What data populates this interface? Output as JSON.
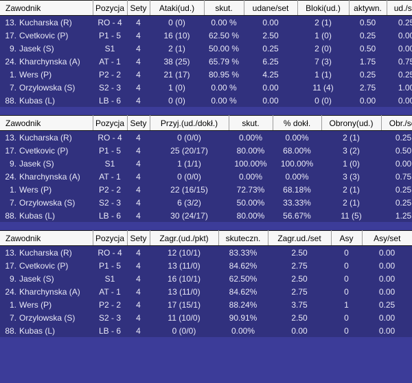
{
  "colors": {
    "row_bg": "#31317e",
    "page_bg": "#3c3c99",
    "header_bg": "#f7f7f7",
    "header_text": "#000000",
    "row_text": "#e9e9f7"
  },
  "tables": [
    {
      "name": "attack-block-stats",
      "columns": [
        "Zawodnik",
        "Pozycja",
        "Sety",
        "Ataki(ud.)",
        "skut.",
        "udane/set",
        "Bloki(ud.)",
        "aktywn.",
        "ud./set"
      ],
      "rows": [
        {
          "no": "13.",
          "name": "Kucharska (R)",
          "cells": [
            "RO - 4",
            "4",
            "0 (0)",
            "0.00 %",
            "0.00",
            "2 (1)",
            "0.50",
            "0.25"
          ]
        },
        {
          "no": "17.",
          "name": "Cvetkovic (P)",
          "cells": [
            "P1 - 5",
            "4",
            "16 (10)",
            "62.50 %",
            "2.50",
            "1 (0)",
            "0.25",
            "0.00"
          ]
        },
        {
          "no": "9.",
          "name": "Jasek (S)",
          "cells": [
            "S1",
            "4",
            "2 (1)",
            "50.00 %",
            "0.25",
            "2 (0)",
            "0.50",
            "0.00"
          ]
        },
        {
          "no": "24.",
          "name": "Kharchynska (A)",
          "cells": [
            "AT - 1",
            "4",
            "38 (25)",
            "65.79 %",
            "6.25",
            "7 (3)",
            "1.75",
            "0.75"
          ]
        },
        {
          "no": "1.",
          "name": "Wers (P)",
          "cells": [
            "P2 - 2",
            "4",
            "21 (17)",
            "80.95 %",
            "4.25",
            "1 (1)",
            "0.25",
            "0.25"
          ]
        },
        {
          "no": "7.",
          "name": "Orzylowska (S)",
          "cells": [
            "S2 - 3",
            "4",
            "1 (0)",
            "0.00 %",
            "0.00",
            "11 (4)",
            "2.75",
            "1.00"
          ]
        },
        {
          "no": "88.",
          "name": "Kubas (L)",
          "cells": [
            "LB - 6",
            "4",
            "0 (0)",
            "0.00 %",
            "0.00",
            "0 (0)",
            "0.00",
            "0.00"
          ]
        }
      ]
    },
    {
      "name": "reception-defense-stats",
      "columns": [
        "Zawodnik",
        "Pozycja",
        "Sety",
        "Przyj.(ud./dokł.)",
        "skut.",
        "% dokł.",
        "Obrony(ud.)",
        "Obr./set"
      ],
      "rows": [
        {
          "no": "13.",
          "name": "Kucharska (R)",
          "cells": [
            "RO - 4",
            "4",
            "0 (0/0)",
            "0.00%",
            "0.00%",
            "2 (1)",
            "0.25"
          ]
        },
        {
          "no": "17.",
          "name": "Cvetkovic (P)",
          "cells": [
            "P1 - 5",
            "4",
            "25 (20/17)",
            "80.00%",
            "68.00%",
            "3 (2)",
            "0.50"
          ]
        },
        {
          "no": "9.",
          "name": "Jasek (S)",
          "cells": [
            "S1",
            "4",
            "1 (1/1)",
            "100.00%",
            "100.00%",
            "1 (0)",
            "0.00"
          ]
        },
        {
          "no": "24.",
          "name": "Kharchynska (A)",
          "cells": [
            "AT - 1",
            "4",
            "0 (0/0)",
            "0.00%",
            "0.00%",
            "3 (3)",
            "0.75"
          ]
        },
        {
          "no": "1.",
          "name": "Wers (P)",
          "cells": [
            "P2 - 2",
            "4",
            "22 (16/15)",
            "72.73%",
            "68.18%",
            "2 (1)",
            "0.25"
          ]
        },
        {
          "no": "7.",
          "name": "Orzylowska (S)",
          "cells": [
            "S2 - 3",
            "4",
            "6 (3/2)",
            "50.00%",
            "33.33%",
            "2 (1)",
            "0.25"
          ]
        },
        {
          "no": "88.",
          "name": "Kubas (L)",
          "cells": [
            "LB - 6",
            "4",
            "30 (24/17)",
            "80.00%",
            "56.67%",
            "11 (5)",
            "1.25"
          ]
        }
      ]
    },
    {
      "name": "serve-stats",
      "columns": [
        "Zawodnik",
        "Pozycja",
        "Sety",
        "Zagr.(ud./pkt)",
        "skuteczn.",
        "Zagr.ud./set",
        "Asy",
        "Asy/set"
      ],
      "rows": [
        {
          "no": "13.",
          "name": "Kucharska (R)",
          "cells": [
            "RO - 4",
            "4",
            "12 (10/1)",
            "83.33%",
            "2.50",
            "0",
            "0.00"
          ]
        },
        {
          "no": "17.",
          "name": "Cvetkovic (P)",
          "cells": [
            "P1 - 5",
            "4",
            "13 (11/0)",
            "84.62%",
            "2.75",
            "0",
            "0.00"
          ]
        },
        {
          "no": "9.",
          "name": "Jasek (S)",
          "cells": [
            "S1",
            "4",
            "16 (10/1)",
            "62.50%",
            "2.50",
            "0",
            "0.00"
          ]
        },
        {
          "no": "24.",
          "name": "Kharchynska (A)",
          "cells": [
            "AT - 1",
            "4",
            "13 (11/0)",
            "84.62%",
            "2.75",
            "0",
            "0.00"
          ]
        },
        {
          "no": "1.",
          "name": "Wers (P)",
          "cells": [
            "P2 - 2",
            "4",
            "17 (15/1)",
            "88.24%",
            "3.75",
            "1",
            "0.25"
          ]
        },
        {
          "no": "7.",
          "name": "Orzylowska (S)",
          "cells": [
            "S2 - 3",
            "4",
            "11 (10/0)",
            "90.91%",
            "2.50",
            "0",
            "0.00"
          ]
        },
        {
          "no": "88.",
          "name": "Kubas (L)",
          "cells": [
            "LB - 6",
            "4",
            "0 (0/0)",
            "0.00%",
            "0.00",
            "0",
            "0.00"
          ]
        }
      ]
    }
  ]
}
